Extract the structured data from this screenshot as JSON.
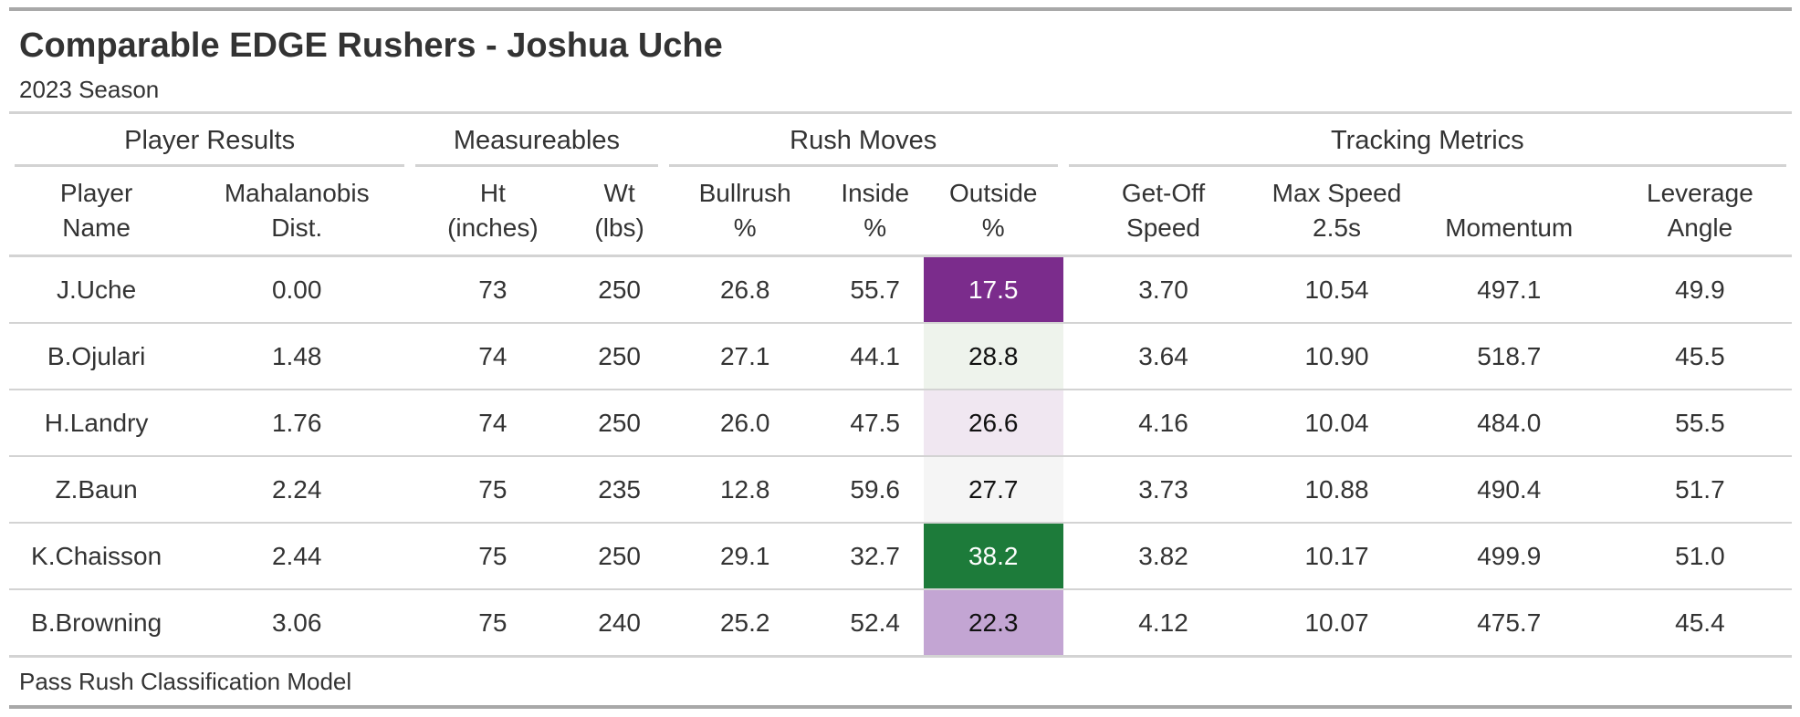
{
  "title": "Comparable EDGE Rushers - Joshua Uche",
  "subtitle": "2023 Season",
  "spanners": {
    "player_results": "Player Results",
    "measureables": "Measureables",
    "rush_moves": "Rush Moves",
    "tracking_metrics": "Tracking Metrics"
  },
  "columns": {
    "player_name": [
      "Player",
      "Name"
    ],
    "mahalanobis": [
      "Mahalanobis",
      "Dist."
    ],
    "ht": [
      "Ht",
      "(inches)"
    ],
    "wt": [
      "Wt",
      "(lbs)"
    ],
    "bullrush": [
      "Bullrush",
      "%"
    ],
    "inside": [
      "Inside",
      "%"
    ],
    "outside": [
      "Outside",
      "%"
    ],
    "getoff": [
      "Get-Off",
      "Speed"
    ],
    "maxspeed": [
      "Max Speed",
      "2.5s"
    ],
    "momentum": [
      "",
      "Momentum"
    ],
    "leverage": [
      "Leverage",
      "Angle"
    ]
  },
  "rows": [
    {
      "player": "J.Uche",
      "dist": "0.00",
      "ht": "73",
      "wt": "250",
      "bullrush": "26.8",
      "inside": "55.7",
      "outside": "17.5",
      "outside_bg": "#7b2c8c",
      "outside_fg": "#ffffff",
      "getoff": "3.70",
      "maxspeed": "10.54",
      "momentum": "497.1",
      "leverage": "49.9"
    },
    {
      "player": "B.Ojulari",
      "dist": "1.48",
      "ht": "74",
      "wt": "250",
      "bullrush": "27.1",
      "inside": "44.1",
      "outside": "28.8",
      "outside_bg": "#eef3ec",
      "outside_fg": "#111111",
      "getoff": "3.64",
      "maxspeed": "10.90",
      "momentum": "518.7",
      "leverage": "45.5"
    },
    {
      "player": "H.Landry",
      "dist": "1.76",
      "ht": "74",
      "wt": "250",
      "bullrush": "26.0",
      "inside": "47.5",
      "outside": "26.6",
      "outside_bg": "#f0e7f1",
      "outside_fg": "#111111",
      "getoff": "4.16",
      "maxspeed": "10.04",
      "momentum": "484.0",
      "leverage": "55.5"
    },
    {
      "player": "Z.Baun",
      "dist": "2.24",
      "ht": "75",
      "wt": "235",
      "bullrush": "12.8",
      "inside": "59.6",
      "outside": "27.7",
      "outside_bg": "#f5f5f5",
      "outside_fg": "#111111",
      "getoff": "3.73",
      "maxspeed": "10.88",
      "momentum": "490.4",
      "leverage": "51.7"
    },
    {
      "player": "K.Chaisson",
      "dist": "2.44",
      "ht": "75",
      "wt": "250",
      "bullrush": "29.1",
      "inside": "32.7",
      "outside": "38.2",
      "outside_bg": "#1d7b3a",
      "outside_fg": "#ffffff",
      "getoff": "3.82",
      "maxspeed": "10.17",
      "momentum": "499.9",
      "leverage": "51.0"
    },
    {
      "player": "B.Browning",
      "dist": "3.06",
      "ht": "75",
      "wt": "240",
      "bullrush": "25.2",
      "inside": "52.4",
      "outside": "22.3",
      "outside_bg": "#c3a5d3",
      "outside_fg": "#111111",
      "getoff": "4.12",
      "maxspeed": "10.07",
      "momentum": "475.7",
      "leverage": "45.4"
    }
  ],
  "source_note": "Pass Rush Classification Model"
}
